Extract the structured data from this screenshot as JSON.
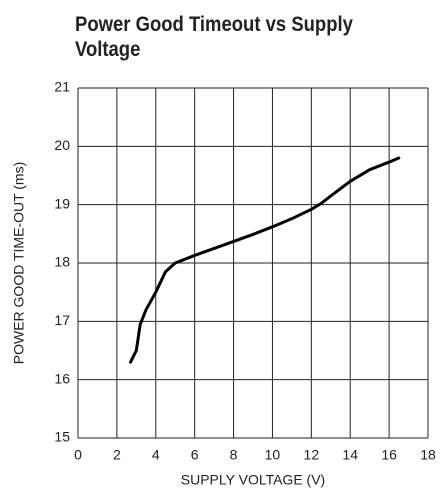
{
  "chart_data": {
    "type": "line",
    "title": "Power Good Timeout vs Supply Voltage",
    "x_label": "SUPPLY VOLTAGE (V)",
    "y_label": "POWER GOOD TIME-OUT (ms)",
    "x": [
      2.7,
      3.0,
      3.2,
      3.5,
      4.0,
      4.5,
      5.0,
      6,
      7,
      8,
      9,
      10,
      11,
      12,
      12.5,
      13,
      14,
      15,
      16,
      16.5
    ],
    "values": [
      16.3,
      16.5,
      16.95,
      17.2,
      17.5,
      17.85,
      18.0,
      18.13,
      18.25,
      18.37,
      18.49,
      18.62,
      18.76,
      18.92,
      19.02,
      19.15,
      19.4,
      19.6,
      19.73,
      19.8
    ],
    "color": "#000000",
    "xlim": [
      0,
      18
    ],
    "xticks": [
      0,
      2,
      4,
      6,
      8,
      10,
      12,
      14,
      16,
      18
    ],
    "ylim": [
      15,
      21
    ],
    "yticks": [
      15,
      16,
      17,
      18,
      19,
      20,
      21
    ],
    "grid": true
  }
}
